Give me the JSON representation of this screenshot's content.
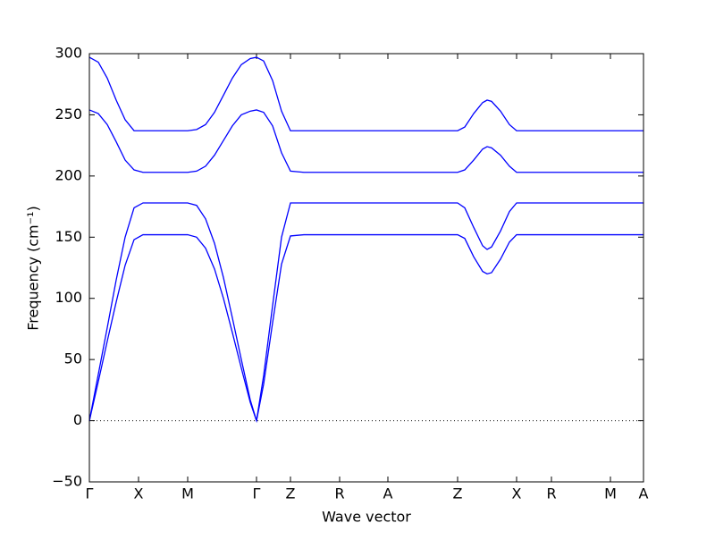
{
  "chart_data": {
    "type": "line",
    "xlabel": "Wave vector",
    "ylabel": "Frequency (cm⁻¹)",
    "x": [
      0,
      10,
      20,
      30,
      40,
      50,
      60,
      80,
      110,
      120,
      130,
      140,
      150,
      160,
      170,
      180,
      187,
      195,
      205,
      215,
      225,
      240,
      300,
      360,
      412,
      420,
      430,
      440,
      445,
      450,
      460,
      470,
      478,
      500,
      560,
      620
    ],
    "series": [
      {
        "color": "#0000ff",
        "values": [
          297,
          293,
          280,
          262,
          246,
          237,
          237,
          237,
          237,
          238,
          242,
          252,
          266,
          280,
          291,
          296,
          297,
          294,
          278,
          253,
          237,
          237,
          237,
          237,
          237,
          240,
          251,
          260,
          262,
          261,
          253,
          242,
          237,
          237,
          237,
          237
        ]
      },
      {
        "color": "#0000ff",
        "values": [
          254,
          251,
          242,
          228,
          213,
          205,
          203,
          203,
          203,
          204,
          208,
          217,
          229,
          241,
          250,
          253,
          254,
          252,
          241,
          219,
          204,
          203,
          203,
          203,
          203,
          205,
          213,
          222,
          224,
          223,
          217,
          208,
          203,
          203,
          203,
          203
        ]
      },
      {
        "color": "#0000ff",
        "values": [
          0,
          38,
          76,
          115,
          150,
          174,
          178,
          178,
          178,
          176,
          165,
          145,
          117,
          84,
          50,
          17,
          0,
          37,
          94,
          150,
          178,
          178,
          178,
          178,
          178,
          174,
          158,
          143,
          140,
          142,
          155,
          171,
          178,
          178,
          178,
          178
        ]
      },
      {
        "color": "#0000ff",
        "values": [
          0,
          32,
          65,
          97,
          127,
          148,
          152,
          152,
          152,
          150,
          141,
          124,
          100,
          72,
          43,
          15,
          0,
          30,
          80,
          128,
          151,
          152,
          152,
          152,
          152,
          149,
          134,
          122,
          120,
          121,
          132,
          146,
          152,
          152,
          152,
          152
        ]
      }
    ],
    "xlim": [
      0,
      620
    ],
    "xticks": [
      {
        "value": 0,
        "label": "Γ"
      },
      {
        "value": 55,
        "label": "X"
      },
      {
        "value": 110,
        "label": "M"
      },
      {
        "value": 187,
        "label": "Γ"
      },
      {
        "value": 225,
        "label": "Z"
      },
      {
        "value": 280,
        "label": "R"
      },
      {
        "value": 334,
        "label": "A"
      },
      {
        "value": 412,
        "label": "Z"
      },
      {
        "value": 478,
        "label": "X"
      },
      {
        "value": 517,
        "label": "R"
      },
      {
        "value": 583,
        "label": "M"
      },
      {
        "value": 620,
        "label": "A"
      }
    ],
    "ylim": [
      -50,
      300
    ],
    "yticks": [
      {
        "value": -50,
        "label": "−50"
      },
      0,
      50,
      100,
      150,
      200,
      250,
      300
    ]
  }
}
